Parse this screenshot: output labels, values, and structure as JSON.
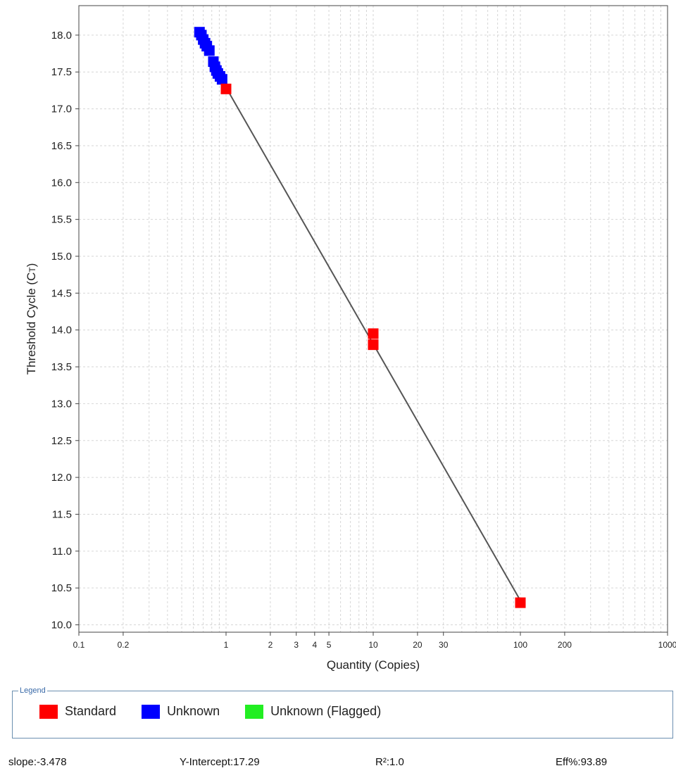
{
  "chart_data": {
    "type": "scatter",
    "xlabel": "Quantity (Copies)",
    "ylabel": "Threshold Cycle (C",
    "ylabel_subscript": "T",
    "ylabel_suffix": ")",
    "x_scale": "log",
    "xlim": [
      0.1,
      1000
    ],
    "ylim": [
      9.9,
      18.4
    ],
    "grid": true,
    "x_ticks": [
      {
        "value": 0.1,
        "label": "0.1"
      },
      {
        "value": 0.2,
        "label": "0.2"
      },
      {
        "value": 1,
        "label": "1"
      },
      {
        "value": 2,
        "label": "2"
      },
      {
        "value": 3,
        "label": "3"
      },
      {
        "value": 4,
        "label": "4"
      },
      {
        "value": 5,
        "label": "5"
      },
      {
        "value": 10,
        "label": "10"
      },
      {
        "value": 20,
        "label": "20"
      },
      {
        "value": 30,
        "label": "30"
      },
      {
        "value": 100,
        "label": "100"
      },
      {
        "value": 200,
        "label": "200"
      },
      {
        "value": 1000,
        "label": "1000"
      }
    ],
    "y_ticks": [
      {
        "value": 10.0,
        "label": "10.0"
      },
      {
        "value": 10.5,
        "label": "10.5"
      },
      {
        "value": 11.0,
        "label": "11.0"
      },
      {
        "value": 11.5,
        "label": "11.5"
      },
      {
        "value": 12.0,
        "label": "12.0"
      },
      {
        "value": 12.5,
        "label": "12.5"
      },
      {
        "value": 13.0,
        "label": "13.0"
      },
      {
        "value": 13.5,
        "label": "13.5"
      },
      {
        "value": 14.0,
        "label": "14.0"
      },
      {
        "value": 14.5,
        "label": "14.5"
      },
      {
        "value": 15.0,
        "label": "15.0"
      },
      {
        "value": 15.5,
        "label": "15.5"
      },
      {
        "value": 16.0,
        "label": "16.0"
      },
      {
        "value": 16.5,
        "label": "16.5"
      },
      {
        "value": 17.0,
        "label": "17.0"
      },
      {
        "value": 17.5,
        "label": "17.5"
      },
      {
        "value": 18.0,
        "label": "18.0"
      }
    ],
    "series": [
      {
        "name": "Standard",
        "color": "#ff0000",
        "points": [
          {
            "x": 1,
            "y": 17.27
          },
          {
            "x": 10,
            "y": 13.95
          },
          {
            "x": 10,
            "y": 13.8
          },
          {
            "x": 100,
            "y": 10.3
          }
        ]
      },
      {
        "name": "Unknown",
        "color": "#0000ff",
        "points": [
          {
            "x": 0.66,
            "y": 18.04
          },
          {
            "x": 0.68,
            "y": 18.0
          },
          {
            "x": 0.7,
            "y": 17.94
          },
          {
            "x": 0.72,
            "y": 17.89
          },
          {
            "x": 0.74,
            "y": 17.85
          },
          {
            "x": 0.77,
            "y": 17.79
          },
          {
            "x": 0.82,
            "y": 17.64
          },
          {
            "x": 0.84,
            "y": 17.57
          },
          {
            "x": 0.86,
            "y": 17.52
          },
          {
            "x": 0.88,
            "y": 17.48
          },
          {
            "x": 0.91,
            "y": 17.44
          },
          {
            "x": 0.94,
            "y": 17.4
          }
        ]
      },
      {
        "name": "Unknown (Flagged)",
        "color": "#22ee22",
        "points": []
      }
    ],
    "fit_line": {
      "color": "#555555",
      "from": {
        "x": 1,
        "y": 17.29
      },
      "to": {
        "x": 100,
        "y": 10.33
      }
    }
  },
  "legend": {
    "title": "Legend",
    "items": [
      {
        "label": "Standard",
        "color": "#ff0000"
      },
      {
        "label": "Unknown",
        "color": "#0000ff"
      },
      {
        "label": "Unknown (Flagged)",
        "color": "#22ee22"
      }
    ]
  },
  "stats": {
    "slope": "slope:-3.478",
    "intercept": "Y-Intercept:17.29",
    "r2": "R²:1.0",
    "eff": "Eff%:93.89"
  }
}
